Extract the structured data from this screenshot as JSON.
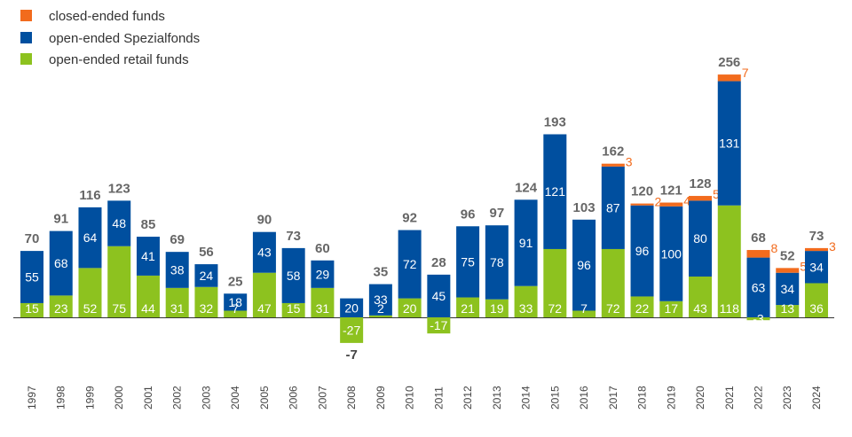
{
  "chart_data": {
    "type": "bar",
    "stacked": true,
    "title": "",
    "xlabel": "",
    "ylabel": "",
    "ylim": [
      -30,
      260
    ],
    "grid": false,
    "legend_position": "top-left",
    "categories": [
      "1997",
      "1998",
      "1999",
      "2000",
      "2001",
      "2002",
      "2003",
      "2004",
      "2005",
      "2006",
      "2007",
      "2008",
      "2009",
      "2010",
      "2011",
      "2012",
      "2013",
      "2014",
      "2015",
      "2016",
      "2017",
      "2018",
      "2019",
      "2020",
      "2021",
      "2022",
      "2023",
      "2024"
    ],
    "series": [
      {
        "name": "open-ended retail funds",
        "color": "#8dc21f",
        "values": [
          15,
          23,
          52,
          75,
          44,
          31,
          32,
          7,
          47,
          15,
          31,
          -27,
          2,
          20,
          -17,
          21,
          19,
          33,
          72,
          7,
          72,
          22,
          17,
          43,
          118,
          -3,
          13,
          36
        ]
      },
      {
        "name": "open-ended Spezialfonds",
        "color": "#004f9f",
        "values": [
          55,
          68,
          64,
          48,
          41,
          38,
          24,
          18,
          43,
          58,
          29,
          20,
          33,
          72,
          45,
          75,
          78,
          91,
          121,
          96,
          87,
          96,
          100,
          80,
          131,
          63,
          34,
          34
        ]
      },
      {
        "name": "closed-ended funds",
        "color": "#f26b1d",
        "values": [
          0,
          0,
          0,
          0,
          0,
          0,
          0,
          0,
          0,
          0,
          0,
          0,
          0,
          0,
          0,
          0,
          0,
          0,
          0,
          0,
          3,
          2,
          4,
          5,
          7,
          8,
          5,
          3
        ]
      }
    ],
    "totals": [
      "70",
      "91",
      "116",
      "123",
      "85",
      "69",
      "56",
      "25",
      "90",
      "73",
      "60",
      "-7",
      "35",
      "92",
      "28",
      "96",
      "97",
      "124",
      "193",
      "103",
      "162",
      "120",
      "121",
      "128",
      "256",
      "68",
      "52",
      "73"
    ],
    "closed_labels": [
      "",
      "",
      "",
      "",
      "",
      "",
      "",
      "",
      "",
      "",
      "",
      "",
      "",
      "",
      "",
      "",
      "",
      "",
      "",
      "",
      "3",
      "2",
      "4",
      "5",
      "7",
      "8",
      "5",
      "3"
    ]
  },
  "legend": [
    {
      "label": "closed-ended funds",
      "color": "#f26b1d",
      "icon": "square-icon"
    },
    {
      "label": "open-ended Spezialfonds",
      "color": "#004f9f",
      "icon": "square-icon"
    },
    {
      "label": "open-ended retail funds",
      "color": "#8dc21f",
      "icon": "square-icon"
    }
  ]
}
